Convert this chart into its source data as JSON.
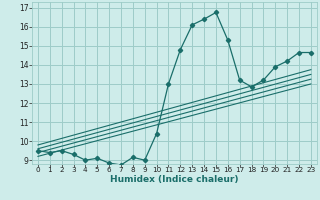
{
  "title": "",
  "xlabel": "Humidex (Indice chaleur)",
  "ylabel": "",
  "bg_color": "#ceecea",
  "grid_color": "#9eccc8",
  "line_color": "#1a6e6a",
  "xlim": [
    -0.5,
    23.5
  ],
  "ylim": [
    8.8,
    17.3
  ],
  "xticks": [
    0,
    1,
    2,
    3,
    4,
    5,
    6,
    7,
    8,
    9,
    10,
    11,
    12,
    13,
    14,
    15,
    16,
    17,
    18,
    19,
    20,
    21,
    22,
    23
  ],
  "yticks": [
    9,
    10,
    11,
    12,
    13,
    14,
    15,
    16,
    17
  ],
  "main_series": {
    "x": [
      0,
      1,
      2,
      3,
      4,
      5,
      6,
      7,
      8,
      9,
      10,
      11,
      12,
      13,
      14,
      15,
      16,
      17,
      18,
      19,
      20,
      21,
      22,
      23
    ],
    "y": [
      9.5,
      9.4,
      9.5,
      9.3,
      9.0,
      9.1,
      8.85,
      8.75,
      9.15,
      9.0,
      10.4,
      13.0,
      14.8,
      16.1,
      16.4,
      16.75,
      15.3,
      13.2,
      12.85,
      13.2,
      13.9,
      14.2,
      14.65,
      14.65
    ]
  },
  "linear_lines": [
    {
      "x0": 0,
      "y0": 9.2,
      "x1": 23,
      "y1": 13.0
    },
    {
      "x0": 0,
      "y0": 9.4,
      "x1": 23,
      "y1": 13.25
    },
    {
      "x0": 0,
      "y0": 9.6,
      "x1": 23,
      "y1": 13.5
    },
    {
      "x0": 0,
      "y0": 9.8,
      "x1": 23,
      "y1": 13.75
    }
  ]
}
